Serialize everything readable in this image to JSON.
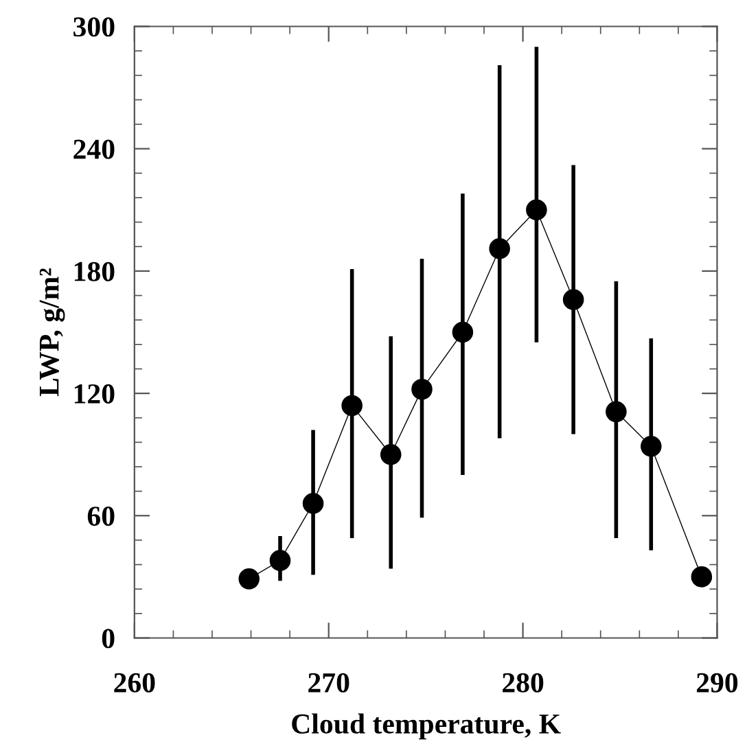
{
  "chart_data": {
    "type": "line",
    "xlabel": "Cloud temperature, K",
    "ylabel": "LWP, g/m²",
    "xlim": [
      260,
      290
    ],
    "xticks": [
      260,
      270,
      280,
      290
    ],
    "ylim": [
      0,
      300
    ],
    "yticks": [
      0,
      60,
      120,
      180,
      240,
      300
    ],
    "grid": false,
    "legend": false,
    "marker": "circle",
    "line_style": "solid",
    "series": [
      {
        "color": "#000000",
        "x": [
          265.9,
          267.5,
          269.2,
          271.2,
          273.2,
          274.8,
          276.9,
          278.8,
          280.7,
          282.6,
          284.8,
          286.6,
          289.2
        ],
        "values": [
          29,
          38,
          66,
          114,
          90,
          122,
          150,
          191,
          210,
          166,
          111,
          94,
          30
        ],
        "errors": [
          null,
          [
            28,
            50
          ],
          [
            31,
            102
          ],
          [
            49,
            181
          ],
          [
            34,
            148
          ],
          [
            59,
            186
          ],
          [
            80,
            218
          ],
          [
            98,
            281
          ],
          [
            145,
            290
          ],
          [
            100,
            232
          ],
          [
            49,
            175
          ],
          [
            43,
            147
          ],
          null
        ]
      }
    ]
  }
}
